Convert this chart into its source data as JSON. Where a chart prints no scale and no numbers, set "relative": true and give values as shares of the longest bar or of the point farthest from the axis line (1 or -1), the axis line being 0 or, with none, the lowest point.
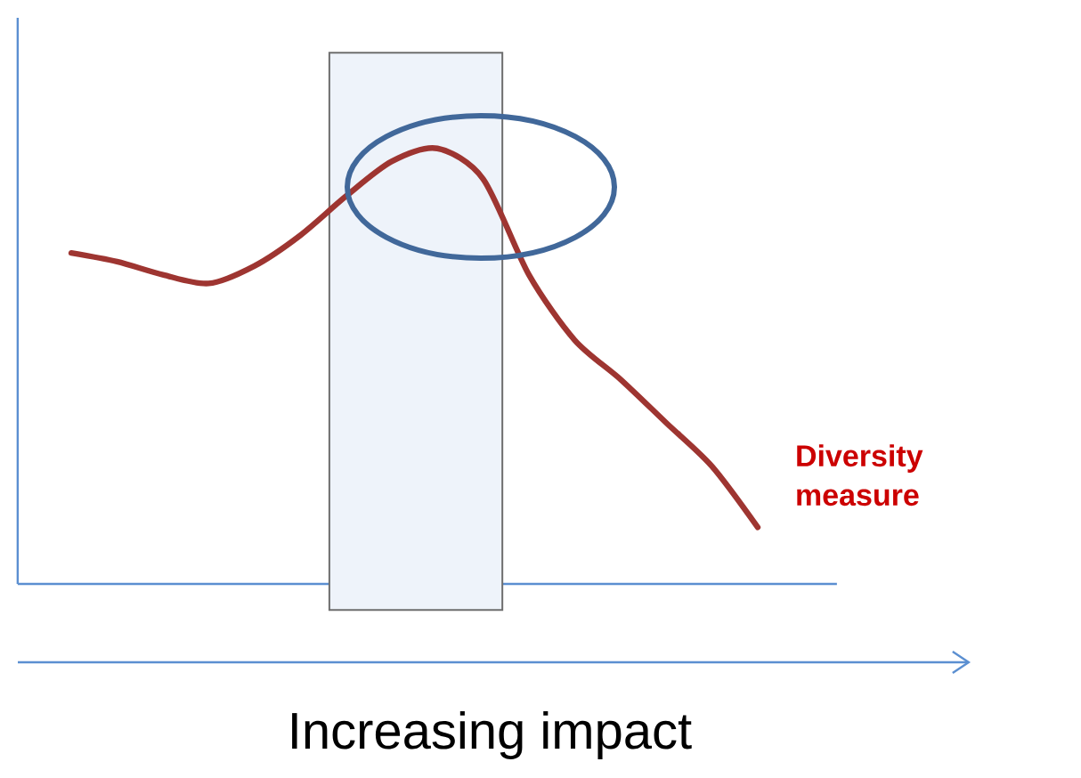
{
  "chart_data": {
    "type": "line",
    "relative": true,
    "xlabel": "Increasing impact",
    "categories": [
      null,
      null,
      null,
      null,
      null,
      null,
      null,
      null,
      null,
      null,
      null,
      null,
      null,
      null,
      null,
      null
    ],
    "series": [
      {
        "name": "Diversity measure",
        "color": "#9e3531",
        "values": [
          0.76,
          0.74,
          0.71,
          0.69,
          0.73,
          0.8,
          0.89,
          0.97,
          1.0,
          0.93,
          0.71,
          0.56,
          0.47,
          0.37,
          0.27,
          0.13
        ]
      }
    ],
    "marker": "none"
  }
}
